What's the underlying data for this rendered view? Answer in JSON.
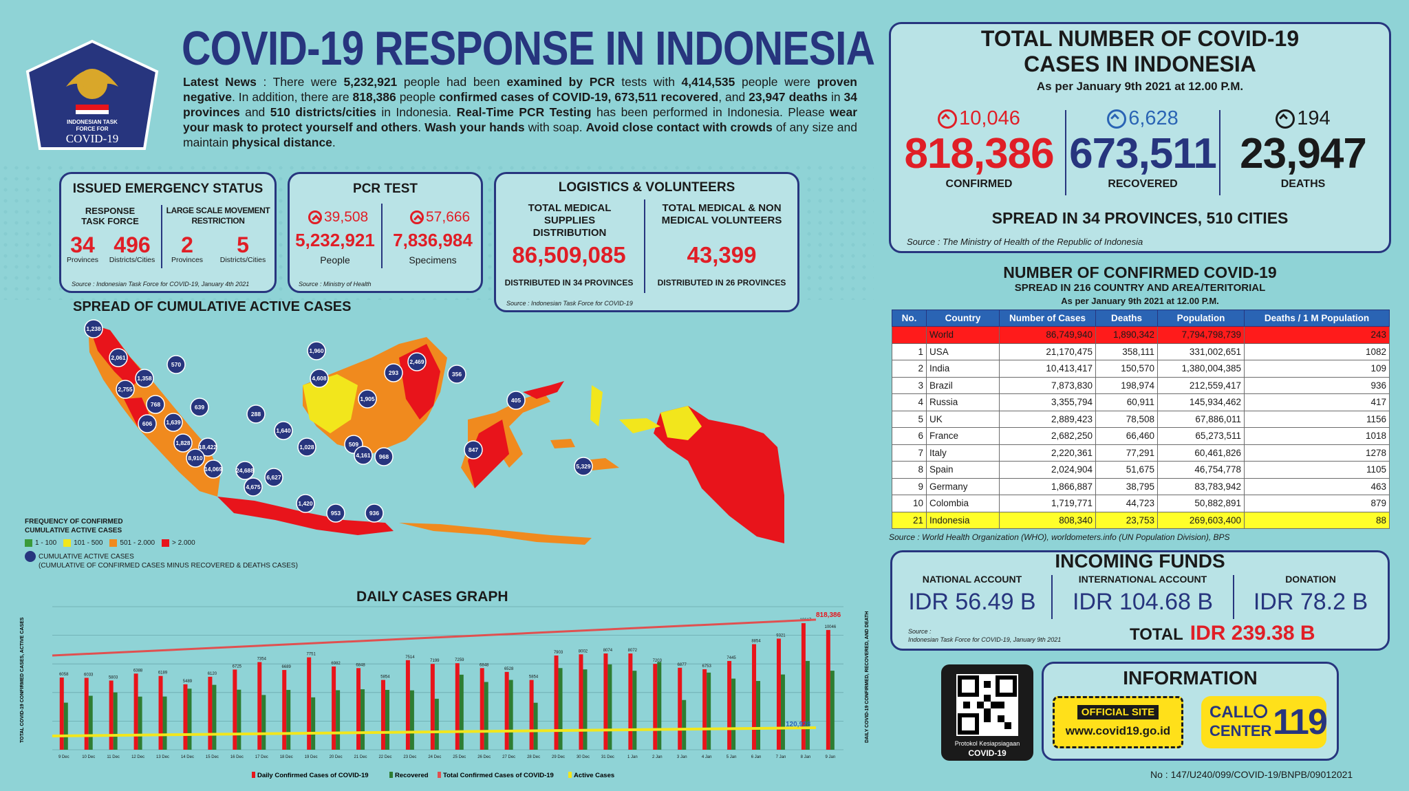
{
  "header": {
    "title": "COVID-19 RESPONSE IN INDONESIA",
    "logo_text_1": "INDONESIAN TASK",
    "logo_text_2": "FORCE FOR",
    "logo_text_3": "COVID-19"
  },
  "news": {
    "p1": "Latest News",
    "p2": " : There were ",
    "p3": "5,232,921",
    "p4": " people had been ",
    "p5": "examined by PCR",
    "p6": " tests with ",
    "p7": "4,414,535",
    "p8": " people were ",
    "p9": "proven negative",
    "p10": ". In addition, there are ",
    "p11": "818,386",
    "p12": " people ",
    "p13": "confirmed cases of COVID-19, 673,511 recovered",
    "p14": ", and ",
    "p15": "23,947 deaths",
    "p16": " in ",
    "p17": "34 provinces",
    "p18": " and ",
    "p19": "510 districts/cities",
    "p20": " in Indonesia. ",
    "p21": "Real-Time PCR Testing",
    "p22": " has been performed in Indonesia. Please ",
    "p23": "wear your mask to protect yourself and others",
    "p24": ". ",
    "p25": "Wash your hands",
    "p26": " with soap. ",
    "p27": "Avoid close contact with crowds",
    "p28": " of any size and maintain ",
    "p29": "physical distance",
    "p30": "."
  },
  "emergency": {
    "title": "ISSUED EMERGENCY STATUS",
    "rtf_label": "RESPONSE TASK FORCE",
    "lsmr_label": "LARGE SCALE MOVEMENT RESTRICTION",
    "rtf_prov": "34",
    "rtf_dist": "496",
    "lsmr_prov": "2",
    "lsmr_dist": "5",
    "provinces": "Provinces",
    "districts": "Districts/Cities",
    "source": "Source : Indonesian Task Force for COVID-19, January 4th 2021"
  },
  "pcr": {
    "title": "PCR TEST",
    "people_delta": "39,508",
    "specimen_delta": "57,666",
    "people": "5,232,921",
    "specimens": "7,836,984",
    "people_label": "People",
    "specimens_label": "Specimens",
    "source": "Source : Ministry of Health"
  },
  "logistics": {
    "title": "LOGISTICS & VOLUNTEERS",
    "supplies_label": "TOTAL MEDICAL SUPPLIES DISTRIBUTION",
    "volunteers_label": "TOTAL MEDICAL & NON MEDICAL VOLUNTEERS",
    "supplies": "86,509,085",
    "volunteers": "43,399",
    "supplies_note": "DISTRIBUTED IN 34 PROVINCES",
    "volunteers_note": "DISTRIBUTED IN 26 PROVINCES",
    "source": "Source : Indonesian Task Force for COVID-19"
  },
  "map": {
    "title": "SPREAD OF CUMULATIVE ACTIVE CASES",
    "bubbles": [
      "1,238",
      "2,061",
      "570",
      "1,358",
      "2,755",
      "768",
      "606",
      "1,639",
      "639",
      "1,828",
      "18,422",
      "8,910",
      "14,069",
      "24,688",
      "4,675",
      "6,627",
      "288",
      "1,640",
      "1,960",
      "4,608",
      "1,028",
      "1,420",
      "953",
      "293",
      "2,469",
      "356",
      "1,905",
      "509",
      "4,161",
      "968",
      "847",
      "936",
      "405",
      "5,329"
    ],
    "legend_title_1": "FREQUENCY OF CONFIRMED",
    "legend_title_2": "CUMULATIVE ACTIVE CASES",
    "legend_items": [
      "1 - 100",
      "101 - 500",
      "501 - 2.000",
      "> 2.000"
    ],
    "legend_colors": [
      "#3a9a3a",
      "#f2e61c",
      "#f08a1e",
      "#e8141b"
    ],
    "bubble_label": "CUMULATIVE ACTIVE CASES",
    "bubble_note": "(CUMULATIVE OF CONFIRMED CASES MINUS RECOVERED & DEATHS CASES)"
  },
  "chart_data": {
    "type": "bar",
    "title": "DAILY CASES GRAPH",
    "ylabel_left": "TOTAL COVID-19 CONFIRMED CASES, ACTIVE CASES",
    "ylabel_right": "DAILY COVID-19 CONFIRMED, RECOVERED, AND DEATH",
    "categories": [
      "9 Dec",
      "10 Dec",
      "11 Dec",
      "12 Dec",
      "13 Dec",
      "14 Dec",
      "15 Dec",
      "16 Dec",
      "17 Dec",
      "18 Dec",
      "19 Dec",
      "20 Dec",
      "21 Dec",
      "22 Dec",
      "23 Dec",
      "24 Dec",
      "25 Dec",
      "26 Dec",
      "27 Dec",
      "28 Dec",
      "29 Dec",
      "30 Dec",
      "31 Dec",
      "1 Jan",
      "2 Jan",
      "3 Jan",
      "4 Jan",
      "5 Jan",
      "6 Jan",
      "7 Jan",
      "8 Jan",
      "9 Jan"
    ],
    "series": [
      {
        "name": "Daily Confirmed Cases of COVID-19",
        "color": "#e8141b",
        "values": [
          6058,
          6033,
          5803,
          6388,
          6189,
          5489,
          6120,
          6725,
          7354,
          6689,
          7751,
          6982,
          6848,
          5854,
          7514,
          7199,
          7259,
          6848,
          6528,
          5854,
          7903,
          8002,
          8074,
          8072,
          7203,
          6877,
          6753,
          7445,
          8854,
          9321,
          10617,
          10046
        ]
      },
      {
        "name": "Recovered",
        "color": "#2e7d32",
        "values": [
          3948,
          4526,
          4811,
          4456,
          4463,
          5121,
          5443,
          5036,
          4592,
          5016,
          4393,
          4991,
          5073,
          5018,
          4981,
          4277,
          6294,
          5683,
          5854,
          3941,
          6850,
          6738,
          7156,
          6624,
          7360,
          4170,
          6470,
          5965,
          5767,
          6310,
          7446,
          6628
        ]
      }
    ],
    "total_confirmed_line": {
      "name": "Total Confirmed Cases of COVID-19",
      "color": "#e05050",
      "start": 592900,
      "end": 818386,
      "end_label": "818,386"
    },
    "active_line": {
      "name": "Active Cases",
      "color": "#f2e61c",
      "end_label": "120,928"
    },
    "legend": [
      "Daily Confirmed Cases of COVID-19",
      "Recovered",
      "Total Confirmed Cases of COVID-19",
      "Active Cases"
    ]
  },
  "totals": {
    "title_1": "TOTAL NUMBER OF COVID-19",
    "title_2": "CASES IN INDONESIA",
    "date": "As per January 9th 2021 at 12.00 P.M.",
    "confirmed_delta": "10,046",
    "recovered_delta": "6,628",
    "deaths_delta": "194",
    "confirmed": "818,386",
    "recovered": "673,511",
    "deaths": "23,947",
    "confirmed_label": "CONFIRMED",
    "recovered_label": "RECOVERED",
    "deaths_label": "DEATHS",
    "spread": "SPREAD IN 34 PROVINCES, 510 CITIES",
    "source": "Source : The Ministry of Health of the Republic of Indonesia"
  },
  "world_table": {
    "title": "NUMBER OF CONFIRMED COVID-19",
    "subtitle": "SPREAD IN 216 COUNTRY AND AREA/TERITORIAL",
    "date": "As per January 9th 2021 at 12.00 P.M.",
    "headers": [
      "No.",
      "Country",
      "Number of Cases",
      "Deaths",
      "Population",
      "Deaths / 1 M Population"
    ],
    "rows": [
      [
        "",
        "World",
        "86,749,940",
        "1,890,342",
        "7,794,798,739",
        "243"
      ],
      [
        "1",
        "USA",
        "21,170,475",
        "358,111",
        "331,002,651",
        "1082"
      ],
      [
        "2",
        "India",
        "10,413,417",
        "150,570",
        "1,380,004,385",
        "109"
      ],
      [
        "3",
        "Brazil",
        "7,873,830",
        "198,974",
        "212,559,417",
        "936"
      ],
      [
        "4",
        "Russia",
        "3,355,794",
        "60,911",
        "145,934,462",
        "417"
      ],
      [
        "5",
        "UK",
        "2,889,423",
        "78,508",
        "67,886,011",
        "1156"
      ],
      [
        "6",
        "France",
        "2,682,250",
        "66,460",
        "65,273,511",
        "1018"
      ],
      [
        "7",
        "Italy",
        "2,220,361",
        "77,291",
        "60,461,826",
        "1278"
      ],
      [
        "8",
        "Spain",
        "2,024,904",
        "51,675",
        "46,754,778",
        "1105"
      ],
      [
        "9",
        "Germany",
        "1,866,887",
        "38,795",
        "83,783,942",
        "463"
      ],
      [
        "10",
        "Colombia",
        "1,719,771",
        "44,723",
        "50,882,891",
        "879"
      ],
      [
        "21",
        "Indonesia",
        "808,340",
        "23,753",
        "269,603,400",
        "88"
      ]
    ],
    "source": "Source : World Health Organization (WHO), worldometers.info (UN Population Division), BPS"
  },
  "funds": {
    "title": "INCOMING FUNDS",
    "national_label": "NATIONAL ACCOUNT",
    "national": "IDR 56.49 B",
    "international_label": "INTERNATIONAL ACCOUNT",
    "international": "IDR 104.68 B",
    "donation_label": "DONATION",
    "donation": "IDR 78.2 B",
    "total_label": "TOTAL",
    "total": "IDR 239.38 B",
    "source_1": "Source :",
    "source_2": "Indonesian Task Force for COVID-19, January 9th 2021"
  },
  "info": {
    "title": "INFORMATION",
    "qr_caption_1": "Protokol Kesiapsiagaan",
    "qr_caption_2": "COVID-19",
    "official_site": "OFFICIAL SITE",
    "site_url": "www.covid19.go.id",
    "call_1": "CALL",
    "call_2": "CENTER",
    "call_number": "119"
  },
  "doc_number": "No : 147/U240/099/COVID-19/BNPB/09012021"
}
